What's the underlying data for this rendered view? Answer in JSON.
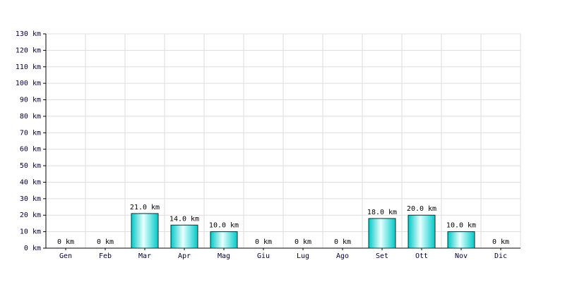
{
  "chart_data": {
    "type": "bar",
    "categories": [
      "Gen",
      "Feb",
      "Mar",
      "Apr",
      "Mag",
      "Giu",
      "Lug",
      "Ago",
      "Set",
      "Ott",
      "Nov",
      "Dic"
    ],
    "values": [
      0,
      0,
      21,
      14,
      10,
      0,
      0,
      0,
      18,
      20,
      10,
      0
    ],
    "value_labels": [
      "0 km",
      "0 km",
      "21.0 km",
      "14.0 km",
      "10.0 km",
      "0 km",
      "0 km",
      "0 km",
      "18.0 km",
      "20.0 km",
      "10.0 km",
      "0 km"
    ],
    "color": "#00c8c8",
    "ylim": [
      0,
      130
    ],
    "yticks": [
      {
        "value": 0,
        "label": "0 km"
      },
      {
        "value": 10,
        "label": "10 km"
      },
      {
        "value": 20,
        "label": "20 km"
      },
      {
        "value": 30,
        "label": "30 km"
      },
      {
        "value": 40,
        "label": "40 km"
      },
      {
        "value": 50,
        "label": "50 km"
      },
      {
        "value": 60,
        "label": "60 km"
      },
      {
        "value": 70,
        "label": "70 km"
      },
      {
        "value": 80,
        "label": "80 km"
      },
      {
        "value": 90,
        "label": "90 km"
      },
      {
        "value": 100,
        "label": "100 km"
      },
      {
        "value": 110,
        "label": "110 km"
      },
      {
        "value": 120,
        "label": "120 km"
      },
      {
        "value": 130,
        "label": "130 km"
      }
    ],
    "grid": true
  }
}
